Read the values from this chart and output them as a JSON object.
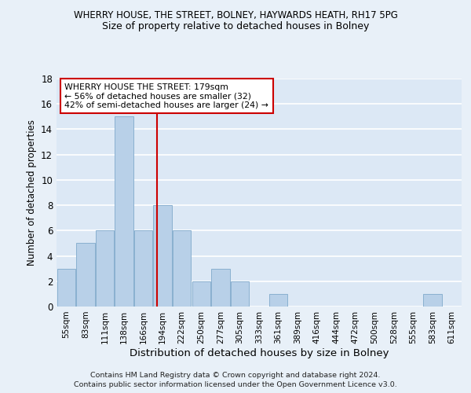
{
  "title1": "WHERRY HOUSE, THE STREET, BOLNEY, HAYWARDS HEATH, RH17 5PG",
  "title2": "Size of property relative to detached houses in Bolney",
  "xlabel": "Distribution of detached houses by size in Bolney",
  "ylabel": "Number of detached properties",
  "categories": [
    "55sqm",
    "83sqm",
    "111sqm",
    "138sqm",
    "166sqm",
    "194sqm",
    "222sqm",
    "250sqm",
    "277sqm",
    "305sqm",
    "333sqm",
    "361sqm",
    "389sqm",
    "416sqm",
    "444sqm",
    "472sqm",
    "500sqm",
    "528sqm",
    "555sqm",
    "583sqm",
    "611sqm"
  ],
  "values": [
    3,
    5,
    6,
    15,
    6,
    8,
    6,
    2,
    3,
    2,
    0,
    1,
    0,
    0,
    0,
    0,
    0,
    0,
    0,
    1,
    0
  ],
  "bar_color": "#b8d0e8",
  "bar_edge_color": "#8ab0d0",
  "vline_x": 4.72,
  "vline_color": "#cc0000",
  "annotation_line1": "WHERRY HOUSE THE STREET: 179sqm",
  "annotation_line2": "← 56% of detached houses are smaller (32)",
  "annotation_line3": "42% of semi-detached houses are larger (24) →",
  "annotation_box_color": "#ffffff",
  "annotation_box_edge": "#cc0000",
  "ylim": [
    0,
    18
  ],
  "yticks": [
    0,
    2,
    4,
    6,
    8,
    10,
    12,
    14,
    16,
    18
  ],
  "bg_color": "#dce8f5",
  "grid_color": "#ffffff",
  "fig_bg": "#e8f0f8",
  "footnote1": "Contains HM Land Registry data © Crown copyright and database right 2024.",
  "footnote2": "Contains public sector information licensed under the Open Government Licence v3.0."
}
